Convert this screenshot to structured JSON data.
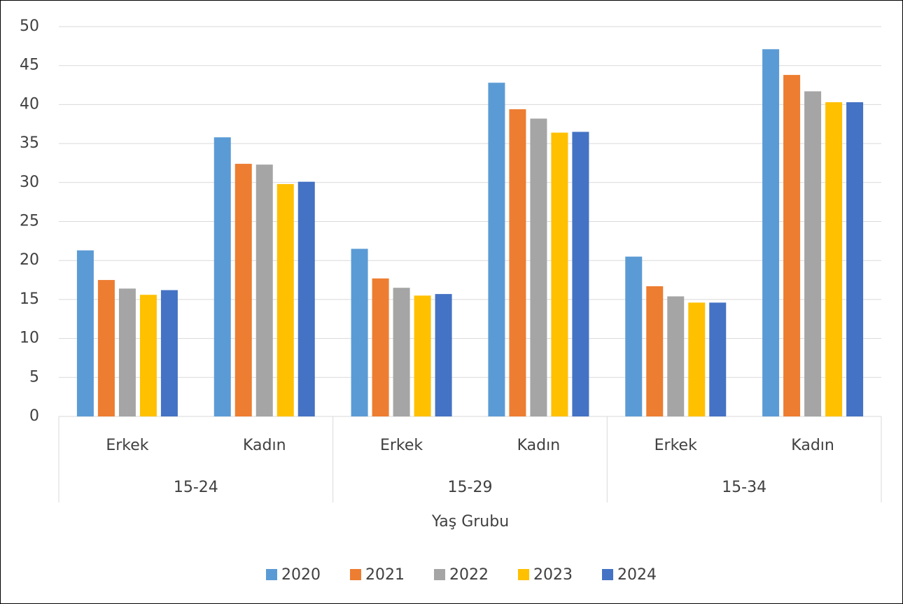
{
  "chart_data": {
    "type": "bar",
    "categories": [
      "Erkek",
      "Kadın",
      "Erkek",
      "Kadın",
      "Erkek",
      "Kadın"
    ],
    "groups": [
      "15-24",
      "15-29",
      "15-34"
    ],
    "x_label": "Yaş Grubu",
    "series": [
      {
        "name": "2020",
        "color": "#5b9bd5",
        "values": [
          21.3,
          35.8,
          21.5,
          42.8,
          20.5,
          47.1
        ]
      },
      {
        "name": "2021",
        "color": "#ed7d31",
        "values": [
          17.5,
          32.4,
          17.7,
          39.4,
          16.7,
          43.8
        ]
      },
      {
        "name": "2022",
        "color": "#a5a5a5",
        "values": [
          16.4,
          32.3,
          16.5,
          38.2,
          15.4,
          41.7
        ]
      },
      {
        "name": "2023",
        "color": "#ffc000",
        "values": [
          15.6,
          29.8,
          15.5,
          36.4,
          14.6,
          40.3
        ]
      },
      {
        "name": "2024",
        "color": "#4472c4",
        "values": [
          16.2,
          30.1,
          15.7,
          36.5,
          14.6,
          40.3
        ]
      }
    ],
    "ylim": [
      0,
      50
    ],
    "yticks": [
      0,
      5,
      10,
      15,
      20,
      25,
      30,
      35,
      40,
      45,
      50
    ],
    "grid": true,
    "legend": "bottom"
  }
}
